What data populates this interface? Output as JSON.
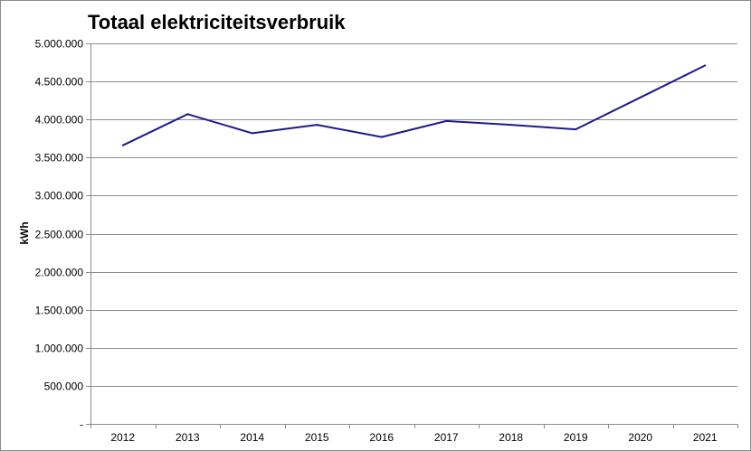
{
  "chart_data": {
    "type": "line",
    "title": "Totaal elektriciteitsverbruik",
    "xlabel": "",
    "ylabel": "kWh",
    "categories": [
      "2012",
      "2013",
      "2014",
      "2015",
      "2016",
      "2017",
      "2018",
      "2019",
      "2020",
      "2021"
    ],
    "series": [
      {
        "values": [
          3660000,
          4070000,
          3820000,
          3930000,
          3770000,
          3980000,
          3930000,
          3870000,
          4290000,
          4710000
        ],
        "color": "#1f1a8c"
      }
    ],
    "ylim": [
      0,
      5000000
    ],
    "yticks": [
      0,
      500000,
      1000000,
      1500000,
      2000000,
      2500000,
      3000000,
      3500000,
      4000000,
      4500000,
      5000000
    ],
    "ytick_labels": [
      "-",
      "500.000",
      "1.000.000",
      "1.500.000",
      "2.000.000",
      "2.500.000",
      "3.000.000",
      "3.500.000",
      "4.000.000",
      "4.500.000",
      "5.000.000"
    ],
    "grid": true,
    "legend": "none"
  }
}
